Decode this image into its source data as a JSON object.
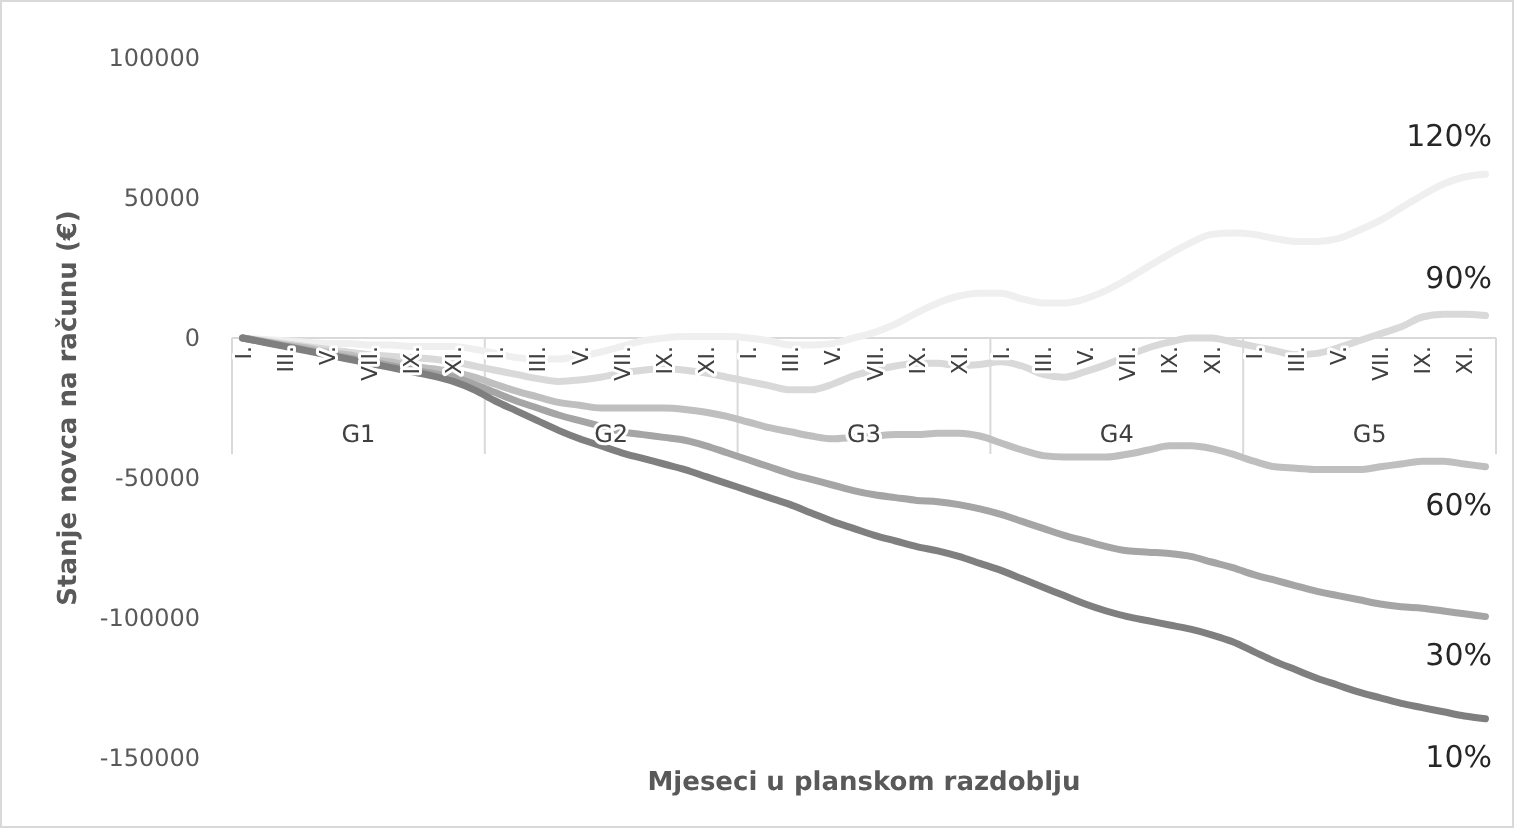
{
  "chart_data": {
    "type": "line",
    "xlabel": "Mjeseci u planskom razdoblju",
    "ylabel": "Stanje novca na računu (€)",
    "categories": [
      "I.",
      null,
      "III.",
      null,
      "V.",
      null,
      "VII.",
      null,
      "IX.",
      null,
      "XI.",
      null,
      "I.",
      null,
      "III.",
      null,
      "V.",
      null,
      "VII.",
      null,
      "IX.",
      null,
      "XI.",
      null,
      "I.",
      null,
      "III.",
      null,
      "V.",
      null,
      "VII.",
      null,
      "IX.",
      null,
      "XI.",
      null,
      "I.",
      null,
      "III.",
      null,
      "V.",
      null,
      "VII.",
      null,
      "IX.",
      null,
      "XI.",
      null,
      "I.",
      null,
      "III.",
      null,
      "V.",
      null,
      "VII.",
      null,
      "IX.",
      null,
      "XI.",
      null
    ],
    "annotations": [
      "G1",
      "G2",
      "G3",
      "G4",
      "G5"
    ],
    "ylim": [
      -150000,
      100000
    ],
    "yticks": [
      -150000,
      -100000,
      -50000,
      0,
      50000,
      100000
    ],
    "grid": false,
    "legend": false,
    "marker": "none",
    "line_style": "solid",
    "series": [
      {
        "name": "120%",
        "color": "#efefef",
        "values": [
          0,
          -500,
          -1000,
          -1500,
          -2000,
          -2000,
          -2500,
          -2500,
          -3000,
          -3000,
          -3000,
          -4000,
          -5500,
          -7000,
          -7500,
          -7500,
          -6500,
          -5000,
          -3000,
          -1000,
          0,
          500,
          500,
          500,
          0,
          -1000,
          -2500,
          -2500,
          -2000,
          0,
          2000,
          5000,
          9000,
          12500,
          15000,
          16000,
          16000,
          14000,
          12500,
          12500,
          14000,
          17000,
          21000,
          25500,
          30000,
          34000,
          37000,
          37500,
          37000,
          35500,
          34500,
          34500,
          35500,
          38500,
          42000,
          46500,
          51000,
          55000,
          57500,
          58500
        ]
      },
      {
        "name": "90%",
        "color": "#d9d9d9",
        "values": [
          0,
          -1000,
          -2000,
          -3000,
          -4000,
          -5000,
          -6000,
          -6500,
          -7000,
          -7500,
          -8500,
          -10000,
          -11500,
          -13000,
          -14500,
          -15500,
          -15000,
          -14000,
          -12500,
          -11500,
          -11000,
          -11500,
          -12500,
          -14000,
          -15500,
          -17000,
          -18500,
          -18500,
          -16500,
          -13500,
          -11500,
          -10000,
          -9000,
          -9000,
          -10000,
          -9500,
          -8500,
          -10000,
          -13000,
          -14000,
          -12000,
          -9500,
          -6500,
          -3500,
          -1500,
          0,
          0,
          -1500,
          -3000,
          -4500,
          -6000,
          -5500,
          -3500,
          -1000,
          1500,
          4000,
          7500,
          8500,
          8500,
          8000
        ]
      },
      {
        "name": "60%",
        "color": "#bfbfbf",
        "values": [
          0,
          -1200,
          -2500,
          -3500,
          -5000,
          -6000,
          -7500,
          -8500,
          -10000,
          -11000,
          -12000,
          -14000,
          -16500,
          -19000,
          -21000,
          -23000,
          -24000,
          -25000,
          -25000,
          -25000,
          -25000,
          -25500,
          -26500,
          -28000,
          -30000,
          -32000,
          -33500,
          -35000,
          -36000,
          -35500,
          -35000,
          -34500,
          -34500,
          -34000,
          -34000,
          -35000,
          -37500,
          -40000,
          -42000,
          -42500,
          -42500,
          -42500,
          -41500,
          -40000,
          -38500,
          -38500,
          -39500,
          -41500,
          -44000,
          -46000,
          -46500,
          -47000,
          -47000,
          -47000,
          -46000,
          -45000,
          -44000,
          -44000,
          -45000,
          -46000
        ]
      },
      {
        "name": "30%",
        "color": "#a5a5a5",
        "values": [
          0,
          -1400,
          -2800,
          -4200,
          -5600,
          -7000,
          -8400,
          -9800,
          -11200,
          -12600,
          -14000,
          -16500,
          -19500,
          -22500,
          -25000,
          -27500,
          -29500,
          -31500,
          -33500,
          -34500,
          -35500,
          -36500,
          -38500,
          -41000,
          -43500,
          -46000,
          -48500,
          -50500,
          -52500,
          -54500,
          -56000,
          -57000,
          -58000,
          -58500,
          -59500,
          -61000,
          -63000,
          -65500,
          -68000,
          -70500,
          -72500,
          -74500,
          -76000,
          -76500,
          -77000,
          -78000,
          -80000,
          -82000,
          -84500,
          -86500,
          -88500,
          -90500,
          -92000,
          -93500,
          -95000,
          -96000,
          -96500,
          -97500,
          -98500,
          -99500
        ]
      },
      {
        "name": "10%",
        "color": "#7f7f7f",
        "values": [
          0,
          -1500,
          -3000,
          -4500,
          -6000,
          -7500,
          -9000,
          -10500,
          -12000,
          -13500,
          -15500,
          -18500,
          -22500,
          -26000,
          -29500,
          -33000,
          -36000,
          -38500,
          -41000,
          -43000,
          -45000,
          -47000,
          -49500,
          -52000,
          -54500,
          -57000,
          -59500,
          -62500,
          -65500,
          -68000,
          -70500,
          -72500,
          -74500,
          -76000,
          -78000,
          -80500,
          -83000,
          -86000,
          -89000,
          -92000,
          -95000,
          -97500,
          -99500,
          -101000,
          -102500,
          -104000,
          -106000,
          -108500,
          -112000,
          -115500,
          -118500,
          -121500,
          -124000,
          -126500,
          -128500,
          -130500,
          -132000,
          -133500,
          -135000,
          -136000
        ]
      }
    ]
  }
}
